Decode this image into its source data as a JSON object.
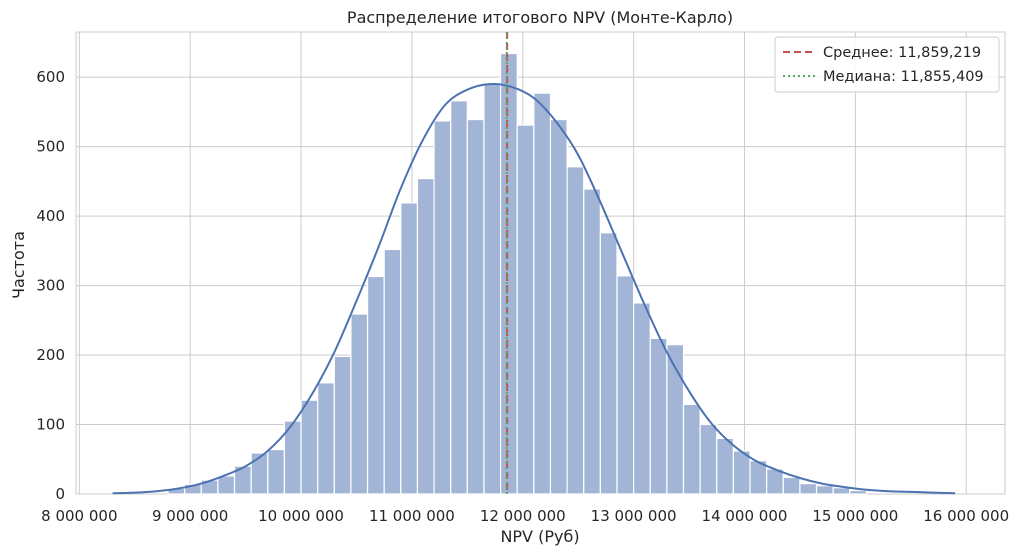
{
  "chart_data": {
    "type": "bar",
    "title": "Распределение итогового NPV (Монте-Карло)",
    "xlabel": "NPV (Руб)",
    "ylabel": "Частота",
    "xlim": [
      7970000,
      16350000
    ],
    "ylim": [
      0,
      665
    ],
    "xticks": [
      8000000,
      9000000,
      10000000,
      11000000,
      12000000,
      13000000,
      14000000,
      15000000,
      16000000
    ],
    "xtick_labels": [
      "8 000 000",
      "9 000 000",
      "10 000 000",
      "11 000 000",
      "12 000 000",
      "13 000 000",
      "14 000 000",
      "15 000 000",
      "16 000 000"
    ],
    "yticks": [
      0,
      100,
      200,
      300,
      400,
      500,
      600
    ],
    "ytick_labels": [
      "0",
      "100",
      "200",
      "300",
      "400",
      "500",
      "600"
    ],
    "grid": true,
    "bar_color": "#a3b5d6",
    "kde_color": "#4c72b0",
    "bins": {
      "start": 8800000,
      "width": 150000,
      "counts": [
        8,
        14,
        20,
        26,
        40,
        59,
        64,
        105,
        135,
        160,
        198,
        259,
        313,
        352,
        419,
        454,
        537,
        566,
        539,
        590,
        634,
        531,
        577,
        539,
        471,
        439,
        376,
        314,
        275,
        224,
        215,
        129,
        100,
        80,
        62,
        48,
        36,
        24,
        15,
        12,
        9,
        5
      ]
    },
    "kde": {
      "x": [
        8300000,
        8500000,
        8700000,
        8900000,
        9100000,
        9300000,
        9500000,
        9700000,
        9900000,
        10100000,
        10300000,
        10500000,
        10700000,
        10900000,
        11100000,
        11300000,
        11500000,
        11700000,
        11900000,
        12100000,
        12300000,
        12500000,
        12700000,
        12900000,
        13100000,
        13300000,
        13500000,
        13700000,
        13900000,
        14100000,
        14300000,
        14500000,
        14700000,
        14900000,
        15100000,
        15300000,
        15500000,
        15700000,
        15900000
      ],
      "y": [
        1,
        2,
        4,
        8,
        15,
        26,
        40,
        62,
        96,
        144,
        204,
        278,
        356,
        440,
        510,
        560,
        582,
        590,
        586,
        570,
        536,
        488,
        420,
        346,
        272,
        204,
        148,
        102,
        70,
        48,
        34,
        23,
        15,
        10,
        6,
        4,
        3,
        2,
        1
      ]
    },
    "mean": 11859219,
    "median": 11855409,
    "legend": {
      "placement": "top-right",
      "entries": [
        {
          "label": "Среднее: 11,859,219",
          "color": "#c44e52",
          "style": "dashed"
        },
        {
          "label": "Медиана: 11,855,409",
          "color": "#55a868",
          "style": "dotted"
        }
      ]
    }
  }
}
